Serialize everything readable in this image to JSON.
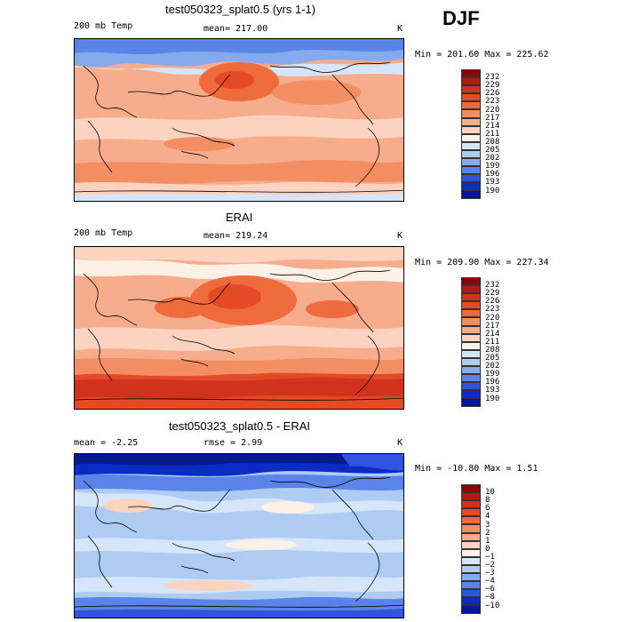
{
  "season": "DJF",
  "panels": [
    {
      "title": "test050323_splat0.5 (yrs 1-1)",
      "left_label": "200 mb Temp",
      "stat_label": "mean=  217.00",
      "unit": "K",
      "minmax": "Min = 201.60  Max = 225.62",
      "levels": [
        "232",
        "229",
        "226",
        "223",
        "220",
        "217",
        "214",
        "211",
        "208",
        "205",
        "202",
        "199",
        "196",
        "193",
        "190"
      ],
      "colors": [
        "#8b0000",
        "#b11a0c",
        "#d0321b",
        "#e44a26",
        "#ef6a3c",
        "#f38d62",
        "#f7ad8c",
        "#fbd3c0",
        "#fdf0e7",
        "#d6e6fa",
        "#aecbf3",
        "#86aaee",
        "#5a84e8",
        "#2f55de",
        "#0a2cc4",
        "#061a8e"
      ]
    },
    {
      "title": "ERAI",
      "left_label": "200 mb Temp",
      "stat_label": "mean=  219.24",
      "unit": "K",
      "minmax": "Min = 209.90  Max = 227.34",
      "levels": [
        "232",
        "229",
        "226",
        "223",
        "220",
        "217",
        "214",
        "211",
        "208",
        "205",
        "202",
        "199",
        "196",
        "193",
        "190"
      ],
      "colors": [
        "#8b0000",
        "#b11a0c",
        "#d0321b",
        "#e44a26",
        "#ef6a3c",
        "#f38d62",
        "#f7ad8c",
        "#fbd3c0",
        "#fdf0e7",
        "#d6e6fa",
        "#aecbf3",
        "#86aaee",
        "#5a84e8",
        "#2f55de",
        "#0a2cc4",
        "#061a8e"
      ]
    },
    {
      "title": "test050323_splat0.5 - ERAI",
      "left_label": "mean =   -2.25",
      "stat_label": "rmse =   2.99",
      "unit": "K",
      "minmax": "Min = -10.80  Max =   1.51",
      "levels": [
        "10",
        "8",
        "6",
        "4",
        "3",
        "2",
        "1",
        "0",
        "−1",
        "−2",
        "−3",
        "−4",
        "−6",
        "−8",
        "−10"
      ],
      "colors": [
        "#8b0000",
        "#b11a0c",
        "#d0321b",
        "#e44a26",
        "#ef6a3c",
        "#f38d62",
        "#f7ad8c",
        "#fbd3c0",
        "#fdf0e7",
        "#d6e6fa",
        "#aecbf3",
        "#86aaee",
        "#5a84e8",
        "#2f55de",
        "#0a2cc4",
        "#061a8e"
      ]
    }
  ]
}
